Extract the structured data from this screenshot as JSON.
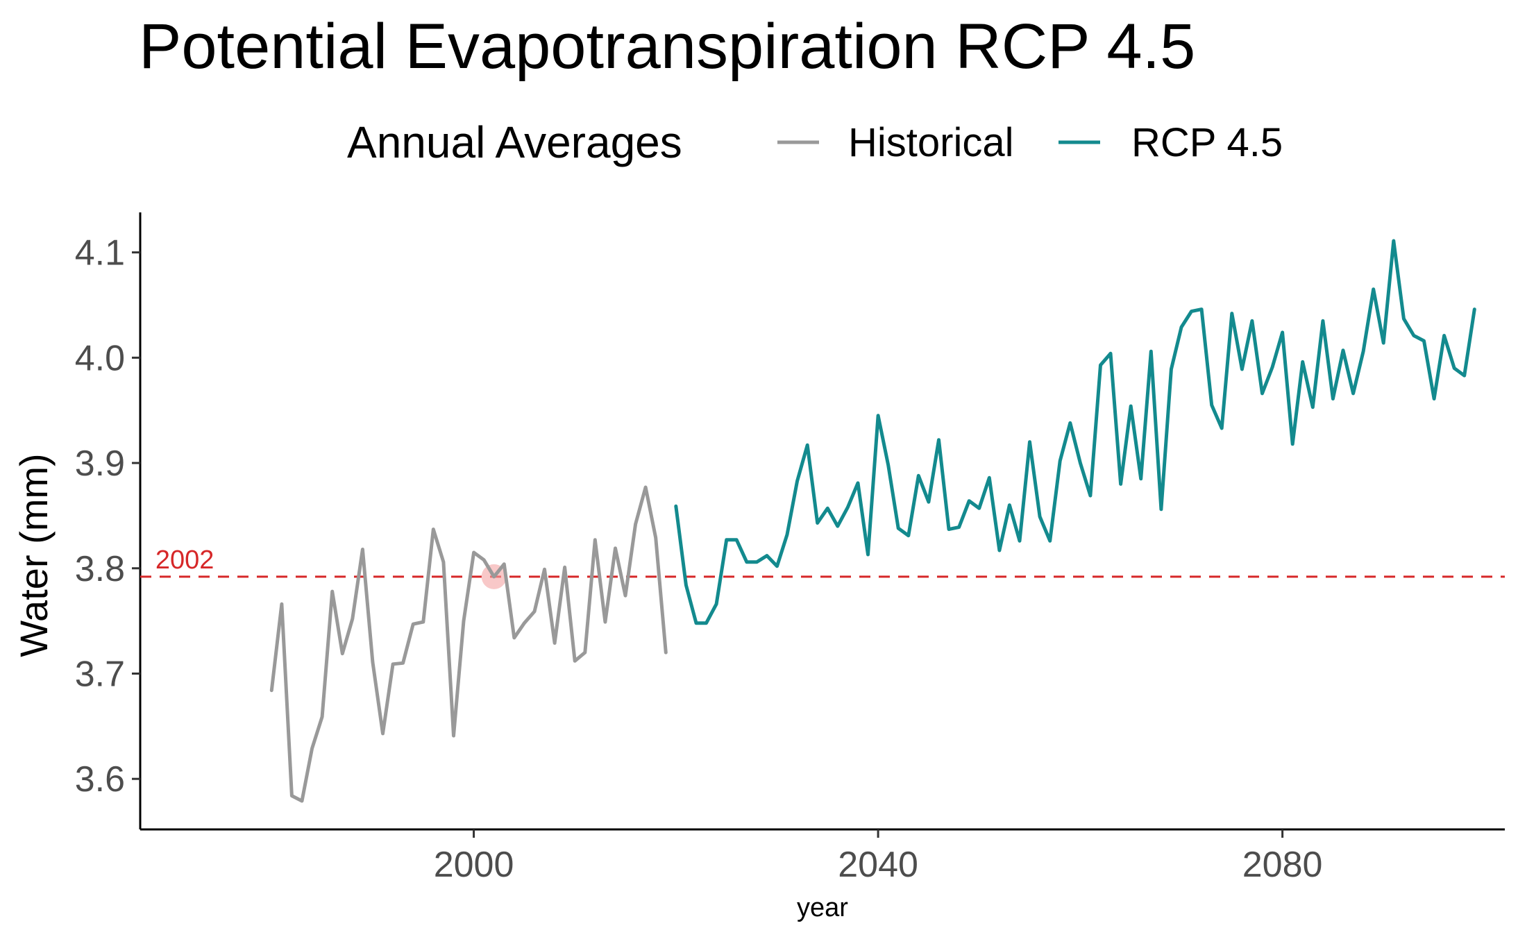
{
  "chart_data": {
    "type": "line",
    "title": "Potential Evapotranspiration RCP 4.5",
    "xlabel": "year",
    "ylabel": "Water (mm)",
    "xlim": [
      1967,
      2102
    ],
    "ylim": [
      3.552,
      4.138
    ],
    "x_ticks": [
      2000,
      2040,
      2080
    ],
    "x_tick_labels": [
      "2000",
      "2040",
      "2080"
    ],
    "y_ticks": [
      3.6,
      3.7,
      3.8,
      3.9,
      4.0,
      4.1
    ],
    "y_tick_labels": [
      "3.6",
      "3.7",
      "3.8",
      "3.9",
      "4.0",
      "4.1"
    ],
    "grid": false,
    "legend": {
      "title": "Annual Averages",
      "placement": "top",
      "entries": [
        "Historical",
        "RCP 4.5"
      ]
    },
    "reference_line": {
      "y": 3.792,
      "label": "2002",
      "color": "#d62728",
      "style": "dashed"
    },
    "highlight_point": {
      "x": 2002,
      "y": 3.792,
      "color": "#f4a3a3"
    },
    "series": [
      {
        "name": "Historical",
        "color": "#999999",
        "x": [
          1980,
          1981,
          1982,
          1983,
          1984,
          1985,
          1986,
          1987,
          1988,
          1989,
          1990,
          1991,
          1992,
          1993,
          1994,
          1995,
          1996,
          1997,
          1998,
          1999,
          2000,
          2001,
          2002,
          2003,
          2004,
          2005,
          2006,
          2007,
          2008,
          2009,
          2010,
          2011,
          2012,
          2013,
          2014,
          2015,
          2016,
          2017,
          2018,
          2019
        ],
        "values": [
          3.684,
          3.766,
          3.584,
          3.579,
          3.629,
          3.659,
          3.778,
          3.719,
          3.752,
          3.818,
          3.711,
          3.643,
          3.709,
          3.71,
          3.747,
          3.749,
          3.837,
          3.806,
          3.641,
          3.75,
          3.815,
          3.808,
          3.792,
          3.804,
          3.734,
          3.748,
          3.759,
          3.799,
          3.729,
          3.801,
          3.712,
          3.72,
          3.827,
          3.749,
          3.819,
          3.774,
          3.842,
          3.877,
          3.829,
          3.72
        ]
      },
      {
        "name": "RCP 4.5",
        "color": "#138a8e",
        "x": [
          2020,
          2021,
          2022,
          2023,
          2024,
          2025,
          2026,
          2027,
          2028,
          2029,
          2030,
          2031,
          2032,
          2033,
          2034,
          2035,
          2036,
          2037,
          2038,
          2039,
          2040,
          2041,
          2042,
          2043,
          2044,
          2045,
          2046,
          2047,
          2048,
          2049,
          2050,
          2051,
          2052,
          2053,
          2054,
          2055,
          2056,
          2057,
          2058,
          2059,
          2060,
          2061,
          2062,
          2063,
          2064,
          2065,
          2066,
          2067,
          2068,
          2069,
          2070,
          2071,
          2072,
          2073,
          2074,
          2075,
          2076,
          2077,
          2078,
          2079,
          2080,
          2081,
          2082,
          2083,
          2084,
          2085,
          2086,
          2087,
          2088,
          2089,
          2090,
          2091,
          2092,
          2093,
          2094,
          2095,
          2096,
          2097,
          2098,
          2099
        ],
        "values": [
          3.859,
          3.784,
          3.748,
          3.748,
          3.766,
          3.827,
          3.827,
          3.806,
          3.806,
          3.812,
          3.802,
          3.832,
          3.883,
          3.917,
          3.843,
          3.857,
          3.84,
          3.858,
          3.881,
          3.813,
          3.945,
          3.898,
          3.838,
          3.831,
          3.888,
          3.863,
          3.922,
          3.837,
          3.839,
          3.864,
          3.857,
          3.886,
          3.817,
          3.86,
          3.826,
          3.92,
          3.849,
          3.826,
          3.902,
          3.938,
          3.9,
          3.869,
          3.993,
          4.004,
          3.88,
          3.954,
          3.885,
          4.006,
          3.856,
          3.989,
          4.029,
          4.044,
          4.046,
          3.955,
          3.933,
          4.042,
          3.989,
          4.035,
          3.966,
          3.991,
          4.024,
          3.918,
          3.996,
          3.953,
          4.035,
          3.961,
          4.007,
          3.966,
          4.006,
          4.065,
          4.014,
          4.111,
          4.037,
          4.021,
          4.016,
          3.961,
          4.021,
          3.99,
          3.983,
          4.046
        ]
      }
    ]
  }
}
